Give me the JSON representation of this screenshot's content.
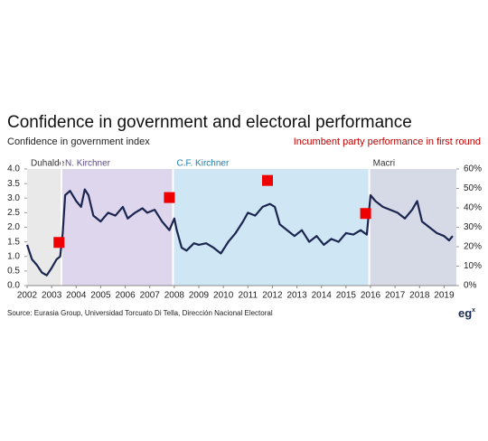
{
  "chart_data": {
    "type": "line",
    "title": "Confidence in government and electoral performance",
    "y_label": "Confidence in government index",
    "y2_label": "Incumbent party performance in first round",
    "source": "Source: Eurasia Group, Universidad Torcuato Di Tella, Dirección Nacional Electoral",
    "logo": {
      "text": "eg",
      "sup": "x"
    },
    "xlim": [
      2002,
      2019.5
    ],
    "xticks": [
      2002,
      2003,
      2004,
      2005,
      2006,
      2007,
      2008,
      2009,
      2010,
      2011,
      2012,
      2013,
      2014,
      2015,
      2016,
      2017,
      2018,
      2019
    ],
    "ylim": [
      0,
      4
    ],
    "yticks": [
      {
        "value": 0,
        "label": "0.0"
      },
      0.5,
      {
        "value": 1,
        "label": "1.0"
      },
      1.5,
      {
        "value": 2,
        "label": "2.0"
      },
      2.5,
      {
        "value": 3,
        "label": "3.0"
      },
      3.5,
      {
        "value": 4,
        "label": "4.0"
      }
    ],
    "y2lim": [
      0,
      60
    ],
    "y2ticks": [
      {
        "value": 0,
        "label": "0%"
      },
      {
        "value": 10,
        "label": "10%"
      },
      {
        "value": 20,
        "label": "20%"
      },
      {
        "value": 30,
        "label": "30%"
      },
      {
        "value": 40,
        "label": "40%"
      },
      {
        "value": 50,
        "label": "50%"
      },
      {
        "value": 60,
        "label": "60%"
      }
    ],
    "regions": [
      {
        "label": "Duhalde",
        "start": 2002,
        "end": 2003.4,
        "color": "#e9e9e9"
      },
      {
        "label": "N. Kirchner",
        "start": 2003.4,
        "end": 2007.95,
        "color": "#ddd6ec"
      },
      {
        "label": "C.F. Kirchner",
        "start": 2007.95,
        "end": 2015.95,
        "color": "#cfe7f5"
      },
      {
        "label": "Macri",
        "start": 2015.95,
        "end": 2019.5,
        "color": "#d6d9e6"
      }
    ],
    "series": [
      {
        "color": "#1a2550",
        "x": [
          2002.0,
          2002.2,
          2002.4,
          2002.6,
          2002.8,
          2003.0,
          2003.2,
          2003.35,
          2003.45,
          2003.55,
          2003.75,
          2004.0,
          2004.2,
          2004.35,
          2004.5,
          2004.7,
          2005.0,
          2005.3,
          2005.6,
          2005.9,
          2006.1,
          2006.4,
          2006.7,
          2006.9,
          2007.2,
          2007.5,
          2007.8,
          2008.0,
          2008.1,
          2008.3,
          2008.5,
          2008.8,
          2009.0,
          2009.3,
          2009.6,
          2009.9,
          2010.2,
          2010.5,
          2010.8,
          2011.0,
          2011.3,
          2011.6,
          2011.9,
          2012.1,
          2012.3,
          2012.6,
          2012.9,
          2013.2,
          2013.5,
          2013.8,
          2014.1,
          2014.4,
          2014.7,
          2015.0,
          2015.3,
          2015.6,
          2015.85,
          2016.0,
          2016.2,
          2016.5,
          2016.8,
          2017.1,
          2017.4,
          2017.7,
          2017.9,
          2018.1,
          2018.4,
          2018.7,
          2019.0,
          2019.2,
          2019.35
        ],
        "values": [
          1.4,
          0.9,
          0.7,
          0.45,
          0.35,
          0.6,
          0.9,
          1.0,
          1.8,
          3.1,
          3.25,
          2.9,
          2.7,
          3.3,
          3.1,
          2.4,
          2.2,
          2.5,
          2.4,
          2.7,
          2.3,
          2.5,
          2.65,
          2.5,
          2.6,
          2.2,
          1.9,
          2.3,
          1.9,
          1.3,
          1.2,
          1.45,
          1.4,
          1.45,
          1.3,
          1.1,
          1.5,
          1.8,
          2.2,
          2.5,
          2.4,
          2.7,
          2.8,
          2.7,
          2.1,
          1.9,
          1.7,
          1.9,
          1.5,
          1.7,
          1.4,
          1.6,
          1.5,
          1.8,
          1.75,
          1.9,
          1.75,
          3.1,
          2.9,
          2.7,
          2.6,
          2.5,
          2.3,
          2.6,
          2.9,
          2.2,
          2.0,
          1.8,
          1.7,
          1.55,
          1.7
        ]
      },
      {
        "color": "#ee0000",
        "axis": "y2",
        "marker": "square",
        "x": [
          2003.3,
          2007.8,
          2011.8,
          2015.8
        ],
        "values": [
          22.2,
          45.3,
          54.1,
          37.1
        ]
      }
    ]
  }
}
